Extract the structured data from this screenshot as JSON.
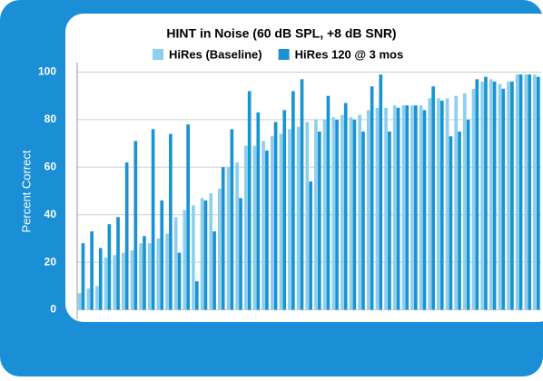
{
  "chart_data": {
    "type": "bar",
    "title": "HINT in Noise (60 dB SPL, +8 dB SNR)",
    "y_label": "Percent Correct",
    "categories": [
      null,
      null,
      null,
      null,
      null,
      null,
      null,
      null,
      null,
      null,
      null,
      null,
      null,
      null,
      null,
      null,
      null,
      null,
      null,
      null,
      null,
      null,
      null,
      null,
      null,
      null,
      null,
      null,
      null,
      null,
      null,
      null,
      null,
      null,
      null,
      null,
      null,
      null,
      null,
      null,
      null,
      null,
      null,
      null,
      null,
      null,
      null,
      null,
      null,
      null,
      null,
      null,
      null
    ],
    "series": [
      {
        "name": "HiRes (Baseline)",
        "color": "#8ccfef",
        "values": [
          7,
          9,
          10,
          22,
          23,
          24,
          25,
          28,
          28,
          30,
          32,
          39,
          42,
          44,
          47,
          49,
          51,
          60,
          62,
          69,
          69,
          71,
          73,
          74,
          76,
          77,
          79,
          80,
          80,
          81,
          82,
          81,
          82,
          84,
          85,
          85,
          86,
          86,
          86,
          86,
          89,
          89,
          89,
          90,
          91,
          93,
          96,
          97,
          95,
          96,
          99,
          99,
          99
        ]
      },
      {
        "name": "HiRes 120 @ 3 mos",
        "color": "#1a93d2",
        "values": [
          28,
          33,
          26,
          36,
          39,
          62,
          71,
          31,
          76,
          46,
          74,
          24,
          78,
          12,
          46,
          33,
          60,
          76,
          47,
          92,
          83,
          67,
          79,
          84,
          92,
          97,
          54,
          75,
          90,
          80,
          87,
          80,
          75,
          94,
          99,
          75,
          85,
          86,
          86,
          84,
          94,
          88,
          73,
          75,
          80,
          97,
          98,
          96,
          93,
          96,
          99,
          99,
          98
        ]
      }
    ],
    "ylim": [
      -4,
      104
    ],
    "yticks": [
      0,
      20,
      40,
      60,
      80,
      100
    ],
    "grid": true
  }
}
